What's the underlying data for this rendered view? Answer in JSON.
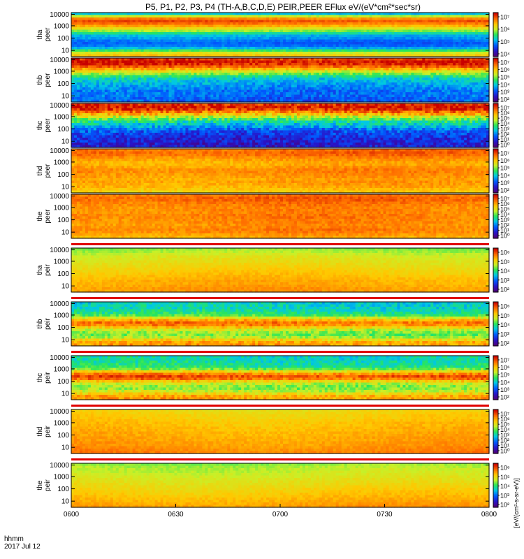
{
  "chart_data": {
    "type": "heatmap",
    "title": "P5, P1, P2, P3, P4 (TH-A,B,C,D,E) PEIR,PEER EFlux eV/(eV*cm²*sec*sr)",
    "x_ticks": [
      "0600",
      "0630",
      "0700",
      "0730",
      "0800"
    ],
    "x_corner_label": "hhmm",
    "x_corner_date": "2017 Jul 12",
    "y_ticks": [
      "10",
      "100",
      "1000",
      "10000"
    ],
    "colorbar_unit": "[eV/(cm²-s-sr-eV)]",
    "panels": [
      {
        "probe": "tha",
        "species": "peer",
        "cb_ticks": [
          "10⁴",
          "10⁵",
          "10⁶",
          "10⁷"
        ],
        "profile": [
          3,
          5,
          6.6,
          7.2,
          6.8,
          6.2,
          5.4,
          4.6,
          3.6,
          2.8,
          2.6,
          2.2,
          2,
          2.2,
          2.8,
          4,
          5.2,
          5.8
        ],
        "noise": 0.25,
        "gaps": []
      },
      {
        "probe": "thb",
        "species": "peer",
        "cb_ticks": [
          "10²",
          "10³",
          "10⁴",
          "10⁵",
          "10⁶",
          "10⁷"
        ],
        "profile": [
          7.4,
          7.8,
          7.6,
          7,
          6.2,
          5.2,
          4.5,
          3.8,
          3.2,
          3,
          2.8,
          2.6,
          2.4,
          2.2,
          2.2,
          2.2,
          2,
          2
        ],
        "noise": 0.5,
        "gaps": []
      },
      {
        "probe": "thc",
        "species": "peer",
        "cb_ticks": [
          "10⁰",
          "10¹",
          "10²",
          "10³",
          "10⁴",
          "10⁵",
          "10⁶",
          "10⁷"
        ],
        "profile": [
          7.6,
          7.8,
          7.4,
          6.8,
          6,
          5,
          4.2,
          3.6,
          3.2,
          2.8,
          2.2,
          1.8,
          1.6,
          1.4,
          1.2,
          1.2,
          1,
          1
        ],
        "noise": 0.7,
        "gaps": []
      },
      {
        "probe": "thd",
        "species": "peer",
        "cb_ticks": [
          "10²",
          "10³",
          "10⁴",
          "10⁵",
          "10⁶",
          "10⁷"
        ],
        "profile": [
          6.8,
          7,
          6.9,
          6.6,
          6.4,
          6.2,
          6.2,
          6.4,
          6.6,
          6.6,
          6.5,
          6.4,
          6.3,
          6.4,
          6.3,
          6.2,
          6,
          5.8
        ],
        "noise": 0.3,
        "gaps": []
      },
      {
        "probe": "the",
        "species": "peer",
        "cb_ticks": [
          "10⁰",
          "10¹",
          "10²",
          "10³",
          "10⁴",
          "10⁵",
          "10⁶",
          "10⁷"
        ],
        "profile": [
          6.8,
          7,
          7,
          6.8,
          6.7,
          6.6,
          6.6,
          6.6,
          6.7,
          6.7,
          6.6,
          6.6,
          6.5,
          6.6,
          6.7,
          6.6,
          6.4,
          6.2
        ],
        "noise": 0.3,
        "gaps": []
      },
      {
        "probe": "tha",
        "species": "peir",
        "cb_ticks": [
          "10²",
          "10³",
          "10⁴",
          "10⁵",
          "10⁶"
        ],
        "profile": [
          4.6,
          4.8,
          5,
          5.2,
          5.3,
          5.4,
          5.5,
          5.6,
          5.7,
          5.8,
          5.9,
          6,
          6.1,
          6.2,
          6.2,
          6.3,
          6.4,
          6.4
        ],
        "noise": 0.2,
        "gaps": [
          0
        ]
      },
      {
        "probe": "thb",
        "species": "peir",
        "cb_ticks": [
          "10²",
          "10³",
          "10⁴",
          "10⁵",
          "10⁶"
        ],
        "profile": [
          3.2,
          3.3,
          3.3,
          3.5,
          3.7,
          4.2,
          5.2,
          6.2,
          6.8,
          6.6,
          5.8,
          5,
          4.6,
          4.4,
          4.8,
          5.6,
          6.2,
          6.4
        ],
        "noise": 0.5,
        "gaps": [
          0
        ]
      },
      {
        "probe": "thc",
        "species": "peir",
        "cb_ticks": [
          "10²",
          "10³",
          "10⁴",
          "10⁵",
          "10⁶",
          "10⁷"
        ],
        "profile": [
          3.4,
          3.4,
          3.5,
          3.6,
          3.8,
          4.4,
          5.6,
          6.6,
          7.2,
          6.8,
          5.8,
          5,
          4.6,
          4.6,
          5,
          5.6,
          6.2,
          6.4
        ],
        "noise": 0.5,
        "gaps": [
          0
        ]
      },
      {
        "probe": "thd",
        "species": "peir",
        "cb_ticks": [
          "10⁰",
          "10¹",
          "10²",
          "10³",
          "10⁴",
          "10⁵",
          "10⁶",
          "10⁷"
        ],
        "profile": [
          5.6,
          5.7,
          5.8,
          5.8,
          5.9,
          6,
          6,
          6.1,
          6.1,
          6.2,
          6.2,
          6.3,
          6.3,
          6.4,
          6.4,
          6.5,
          6.6,
          6.7
        ],
        "noise": 0.2,
        "gaps": [
          0
        ]
      },
      {
        "probe": "the",
        "species": "peir",
        "cb_ticks": [
          "10²",
          "10³",
          "10⁴",
          "10⁵",
          "10⁶"
        ],
        "profile": [
          4.6,
          4.8,
          4.9,
          5,
          5.1,
          5.2,
          5.3,
          5.4,
          5.5,
          5.6,
          5.7,
          5.8,
          5.9,
          6,
          6.1,
          6.2,
          6.3,
          6.4
        ],
        "noise": 0.2,
        "gaps": [
          0
        ]
      }
    ]
  }
}
